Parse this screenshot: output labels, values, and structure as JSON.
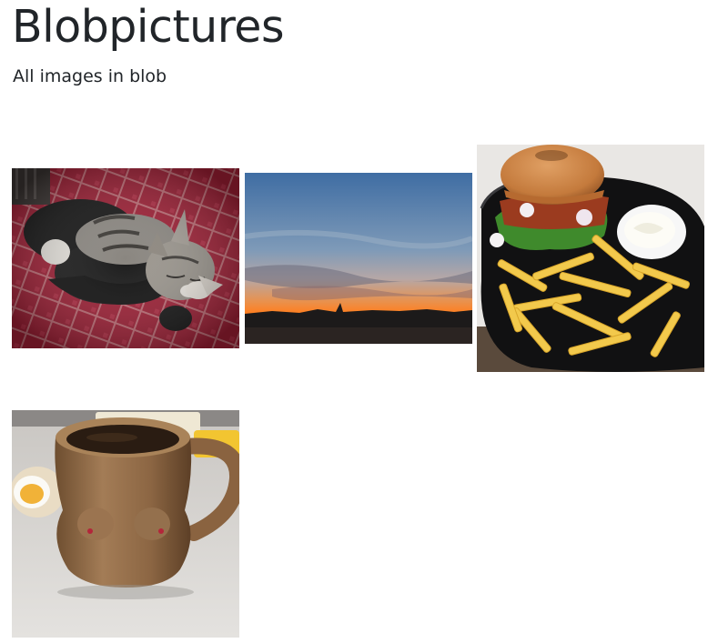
{
  "header": {
    "title": "Blobpictures",
    "subtitle": "All images in blob"
  },
  "gallery": {
    "images": [
      {
        "subject": "two kittens sleeping on a red patterned blanket"
      },
      {
        "subject": "sunset sky over a dark horizon"
      },
      {
        "subject": "hamburger with fries and dipping sauce on a black plate"
      },
      {
        "subject": "brown ceramic mug of coffee on a table next to boiled egg"
      }
    ]
  },
  "colors": {
    "text": "#212529",
    "background": "#ffffff"
  }
}
